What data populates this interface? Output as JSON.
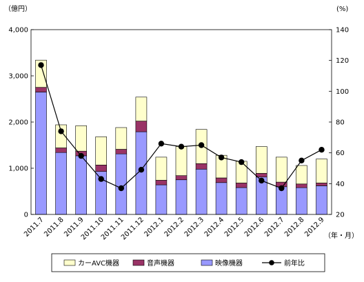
{
  "chart_data": {
    "type": "bar",
    "stacked": true,
    "categories": [
      "2011.7",
      "2011.8",
      "2011.9",
      "2011.10",
      "2011.11",
      "2011.12",
      "2012.1",
      "2012.2",
      "2012.3",
      "2012.4",
      "2012.5",
      "2012.6",
      "2012.7",
      "2012.8",
      "2012.9"
    ],
    "series": [
      {
        "name": "映像機器",
        "axis": "left",
        "color": "#9999ff",
        "values": [
          2650,
          1340,
          1270,
          930,
          1310,
          1790,
          640,
          750,
          980,
          690,
          580,
          810,
          600,
          580,
          620
        ]
      },
      {
        "name": "音声機器",
        "axis": "left",
        "color": "#993366",
        "values": [
          100,
          100,
          100,
          140,
          100,
          230,
          100,
          90,
          120,
          100,
          100,
          80,
          100,
          80,
          60
        ]
      },
      {
        "name": "カーAVC機器",
        "axis": "left",
        "color": "#ffffcc",
        "values": [
          590,
          500,
          550,
          610,
          470,
          520,
          500,
          630,
          740,
          490,
          470,
          580,
          540,
          400,
          520
        ]
      },
      {
        "name": "前年比",
        "axis": "right",
        "type": "line",
        "color": "#000000",
        "values": [
          117,
          74,
          58,
          43,
          37,
          49,
          66,
          64,
          65,
          57,
          54,
          42,
          37,
          55,
          62
        ]
      }
    ],
    "left_axis": {
      "unit_label": "（億円）",
      "ylim": [
        0,
        4000
      ],
      "ticks": [
        "0",
        "1,000",
        "2,000",
        "3,000",
        "4,000"
      ]
    },
    "right_axis": {
      "unit_label": "(%)",
      "ylim": [
        20,
        140
      ],
      "ticks": [
        "20",
        "40",
        "60",
        "80",
        "100",
        "120",
        "140"
      ]
    },
    "x_unit_label": "（年・月）",
    "legend": {
      "placement": "bottom",
      "items": [
        "カーAVC機器",
        "音声機器",
        "映像機器",
        "前年比"
      ]
    },
    "grid": false
  }
}
